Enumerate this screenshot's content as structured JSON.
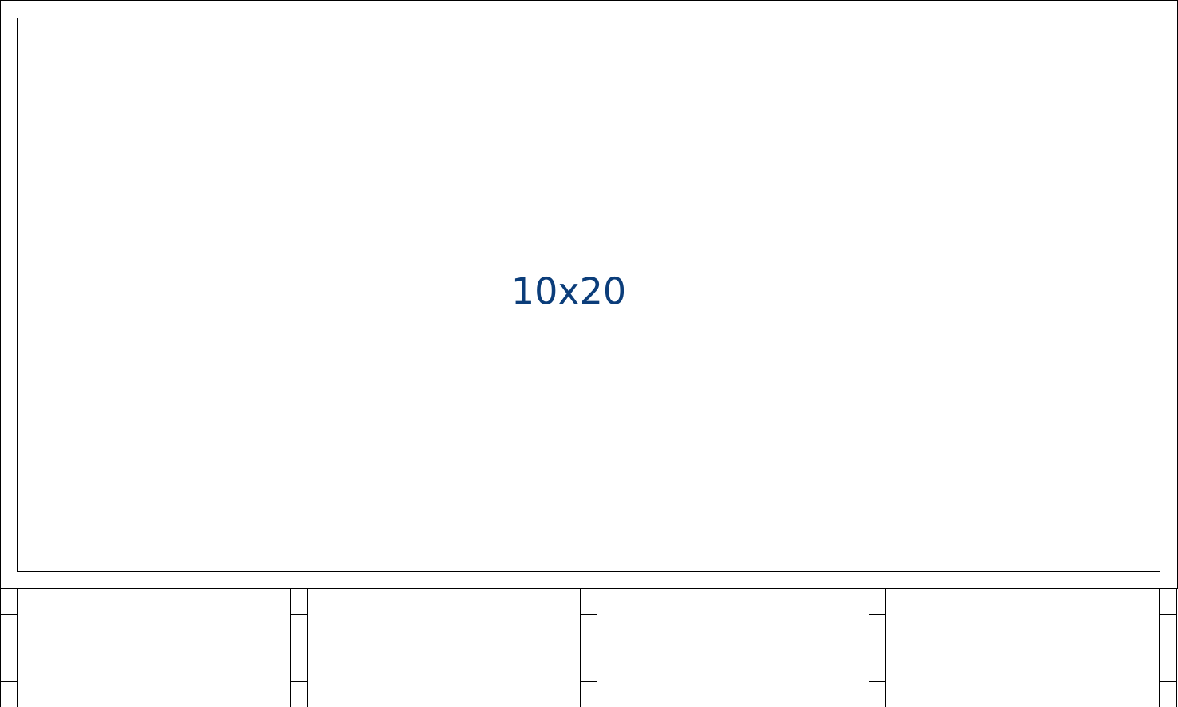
{
  "panel": {
    "size_label": "10x20"
  },
  "colors": {
    "line": "#000000",
    "label": "#0b3d7a",
    "background": "#ffffff"
  },
  "legs": {
    "count": 5,
    "segments_per_leg": 3
  }
}
